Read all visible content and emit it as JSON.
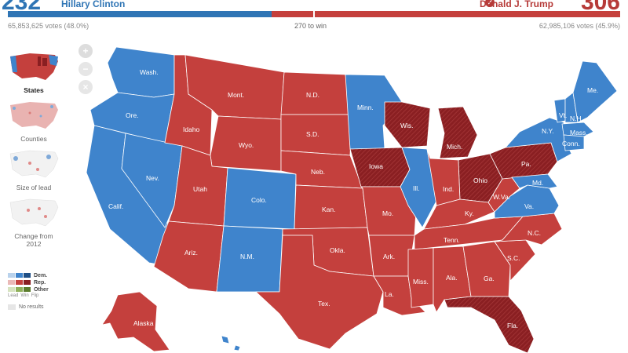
{
  "header": {
    "dem_count": "232",
    "dem_name": "Hillary Clinton",
    "rep_count": "306",
    "rep_name": "Donald J. Trump",
    "rep_winner_mark": "✔",
    "dem_votes": "65,853,625 votes (48.0%)",
    "rep_votes": "62,985,106 votes (45.9%)",
    "to_win": "270 to win",
    "dem_share": 0.431
  },
  "zoom": {
    "in": "+",
    "out": "−",
    "reset": "×"
  },
  "views": [
    {
      "label": "States"
    },
    {
      "label": "Counties"
    },
    {
      "label": "Size of lead"
    },
    {
      "label": "Change from 2012"
    }
  ],
  "legend": {
    "dem": "Dem.",
    "rep": "Rep.",
    "other": "Other",
    "lead": "Lead",
    "win": "Win",
    "flip": "Flip",
    "no_results": "No results"
  },
  "colors": {
    "dem": "#3f84cc",
    "rep": "#c4403d",
    "flip": "#8a1f22",
    "border": "#ffffff"
  },
  "states": {
    "wash": "Wash.",
    "ore": "Ore.",
    "calif": "Calif.",
    "nev": "Nev.",
    "idaho": "Idaho",
    "mont": "Mont.",
    "wyo": "Wyo.",
    "utah": "Utah",
    "colo": "Colo.",
    "ariz": "Ariz.",
    "nm": "N.M.",
    "nd": "N.D.",
    "sd": "S.D.",
    "neb": "Neb.",
    "kan": "Kan.",
    "okla": "Okla.",
    "tex": "Tex.",
    "minn": "Minn.",
    "iowa": "Iowa",
    "mo": "Mo.",
    "ark": "Ark.",
    "la": "La.",
    "wis": "Wis.",
    "ill": "Ill.",
    "mich": "Mich.",
    "ind": "Ind.",
    "ohio": "Ohio",
    "ky": "Ky.",
    "tenn": "Tenn.",
    "miss": "Miss.",
    "ala": "Ala.",
    "ga": "Ga.",
    "fla": "Fla.",
    "sc": "S.C.",
    "nc": "N.C.",
    "va": "Va.",
    "wva": "W.Va.",
    "pa": "Pa.",
    "md": "Md.",
    "ny": "N.Y.",
    "vt": "Vt.",
    "nh": "N.H.",
    "me": "Me.",
    "mass": "Mass.",
    "conn": "Conn.",
    "alaska": "Alaska"
  }
}
